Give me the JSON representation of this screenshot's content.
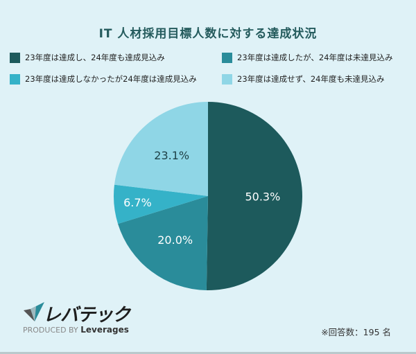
{
  "header": {
    "title": "IT 人材採用目標人数に対する達成状況"
  },
  "legend": [
    {
      "label": "23年度は達成し、24年度も達成見込み",
      "color": "#1d5a5c"
    },
    {
      "label": "23年度は達成したが、24年度は未達見込み",
      "color": "#2a8c9a"
    },
    {
      "label": "23年度は達成しなかったが24年度は達成見込み",
      "color": "#35b2c8"
    },
    {
      "label": "23年度は達成せず、24年度も未達見込み",
      "color": "#8fd6e6"
    }
  ],
  "footer": {
    "brand": "レバテック",
    "produced_by": "PRODUCED BY",
    "company": "Leverages",
    "note": "※回答数：195 名"
  },
  "chart_data": {
    "type": "pie",
    "title": "IT 人材採用目標人数に対する達成状況",
    "categories": [
      "23年度は達成し、24年度も達成見込み",
      "23年度は達成したが、24年度は未達見込み",
      "23年度は達成しなかったが24年度は達成見込み",
      "23年度は達成せず、24年度も未達見込み"
    ],
    "values": [
      50.3,
      20.0,
      6.7,
      23.1
    ],
    "labels": [
      "50.3%",
      "20.0%",
      "6.7%",
      "23.1%"
    ],
    "colors": [
      "#1d5a5c",
      "#2a8c9a",
      "#35b2c8",
      "#8fd6e6"
    ],
    "start_angle": "12 o'clock, clockwise",
    "legend_position": "top",
    "n": 195
  }
}
